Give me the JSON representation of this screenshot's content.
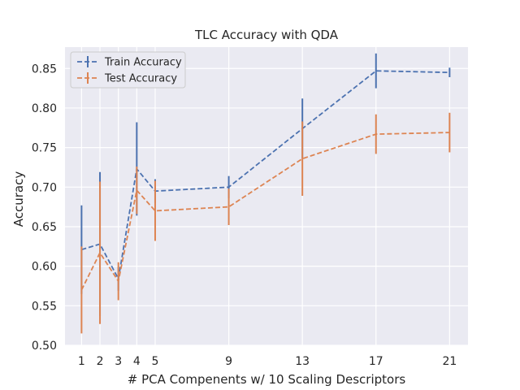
{
  "chart_data": {
    "type": "line",
    "title": "TLC Accuracy with QDA",
    "xlabel": "# PCA Compenents w/ 10 Scaling Descriptors",
    "ylabel": "Accuracy",
    "x": [
      1,
      2,
      3,
      4,
      5,
      9,
      13,
      17,
      21
    ],
    "xticks": [
      "1",
      "2",
      "3",
      "4",
      "5",
      "9",
      "13",
      "17",
      "21"
    ],
    "yticks": [
      "0.50",
      "0.55",
      "0.60",
      "0.65",
      "0.70",
      "0.75",
      "0.80",
      "0.85"
    ],
    "xlim": [
      0.1,
      22.0
    ],
    "ylim": [
      0.5,
      0.877
    ],
    "grid": true,
    "legend_position": "top-left",
    "series": [
      {
        "name": "Train Accuracy",
        "color": "#4c72b0",
        "values": [
          0.621,
          0.628,
          0.584,
          0.723,
          0.695,
          0.7,
          0.774,
          0.847,
          0.845
        ],
        "errors": [
          0.056,
          0.091,
          0.015,
          0.059,
          0.015,
          0.014,
          0.038,
          0.022,
          0.006
        ]
      },
      {
        "name": "Test Accuracy",
        "color": "#dd8452",
        "values": [
          0.57,
          0.617,
          0.581,
          0.696,
          0.67,
          0.675,
          0.736,
          0.767,
          0.769
        ],
        "errors": [
          0.055,
          0.09,
          0.024,
          0.03,
          0.038,
          0.023,
          0.047,
          0.025,
          0.025
        ]
      }
    ]
  }
}
